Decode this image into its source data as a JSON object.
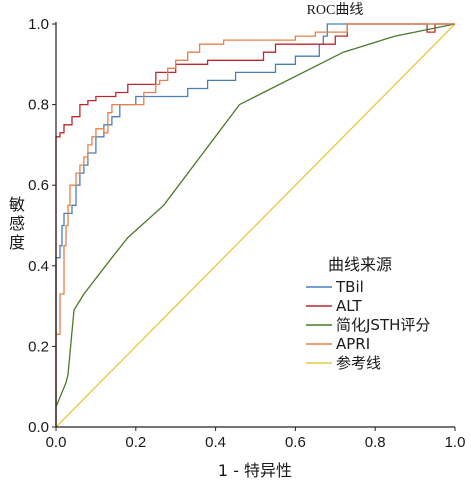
{
  "chart_data": {
    "type": "line",
    "title": "ROC曲线",
    "xlabel": "1 - 特异性",
    "ylabel": "敏感度",
    "xlim": [
      0,
      1
    ],
    "ylim": [
      0,
      1
    ],
    "x_ticks": [
      "0.0",
      "0.2",
      "0.4",
      "0.6",
      "0.8",
      "1.0"
    ],
    "y_ticks": [
      "0.0",
      "0.2",
      "0.4",
      "0.6",
      "0.8",
      "1.0"
    ],
    "grid": false,
    "legend": {
      "title": "曲线来源",
      "placement": "bottom-right"
    },
    "series": [
      {
        "name": "TBil",
        "color": "#4a7ebb",
        "points": [
          [
            0,
            0
          ],
          [
            0,
            0.42
          ],
          [
            0.01,
            0.42
          ],
          [
            0.01,
            0.45
          ],
          [
            0.015,
            0.45
          ],
          [
            0.015,
            0.5
          ],
          [
            0.02,
            0.5
          ],
          [
            0.02,
            0.53
          ],
          [
            0.04,
            0.53
          ],
          [
            0.04,
            0.55
          ],
          [
            0.05,
            0.55
          ],
          [
            0.05,
            0.6
          ],
          [
            0.06,
            0.6
          ],
          [
            0.06,
            0.63
          ],
          [
            0.07,
            0.63
          ],
          [
            0.07,
            0.65
          ],
          [
            0.08,
            0.65
          ],
          [
            0.08,
            0.68
          ],
          [
            0.1,
            0.68
          ],
          [
            0.1,
            0.72
          ],
          [
            0.12,
            0.72
          ],
          [
            0.12,
            0.75
          ],
          [
            0.14,
            0.75
          ],
          [
            0.14,
            0.77
          ],
          [
            0.16,
            0.77
          ],
          [
            0.16,
            0.8
          ],
          [
            0.2,
            0.8
          ],
          [
            0.2,
            0.82
          ],
          [
            0.33,
            0.82
          ],
          [
            0.33,
            0.84
          ],
          [
            0.38,
            0.84
          ],
          [
            0.38,
            0.86
          ],
          [
            0.45,
            0.86
          ],
          [
            0.45,
            0.88
          ],
          [
            0.55,
            0.88
          ],
          [
            0.55,
            0.9
          ],
          [
            0.6,
            0.9
          ],
          [
            0.6,
            0.92
          ],
          [
            0.66,
            0.92
          ],
          [
            0.66,
            0.95
          ],
          [
            0.67,
            0.95
          ],
          [
            0.67,
            0.97
          ],
          [
            0.68,
            0.97
          ],
          [
            0.68,
            1.0
          ],
          [
            1.0,
            1.0
          ]
        ]
      },
      {
        "name": "ALT",
        "color": "#c0262d",
        "points": [
          [
            0,
            0
          ],
          [
            0,
            0.72
          ],
          [
            0.01,
            0.72
          ],
          [
            0.01,
            0.73
          ],
          [
            0.02,
            0.73
          ],
          [
            0.02,
            0.75
          ],
          [
            0.04,
            0.75
          ],
          [
            0.04,
            0.77
          ],
          [
            0.06,
            0.77
          ],
          [
            0.06,
            0.8
          ],
          [
            0.08,
            0.8
          ],
          [
            0.08,
            0.81
          ],
          [
            0.1,
            0.81
          ],
          [
            0.1,
            0.82
          ],
          [
            0.15,
            0.82
          ],
          [
            0.15,
            0.83
          ],
          [
            0.18,
            0.83
          ],
          [
            0.18,
            0.85
          ],
          [
            0.25,
            0.85
          ],
          [
            0.25,
            0.88
          ],
          [
            0.3,
            0.88
          ],
          [
            0.3,
            0.9
          ],
          [
            0.38,
            0.9
          ],
          [
            0.38,
            0.91
          ],
          [
            0.52,
            0.91
          ],
          [
            0.52,
            0.93
          ],
          [
            0.55,
            0.93
          ],
          [
            0.55,
            0.95
          ],
          [
            0.7,
            0.95
          ],
          [
            0.7,
            0.97
          ],
          [
            0.73,
            0.97
          ],
          [
            0.73,
            1.0
          ],
          [
            0.93,
            1.0
          ],
          [
            0.93,
            0.98
          ],
          [
            0.95,
            0.98
          ],
          [
            0.95,
            1.0
          ],
          [
            1.0,
            1.0
          ]
        ]
      },
      {
        "name": "简化JSTH评分",
        "color": "#4a7a2a",
        "points": [
          [
            0,
            0.05
          ],
          [
            0.025,
            0.11
          ],
          [
            0.03,
            0.13
          ],
          [
            0.045,
            0.29
          ],
          [
            0.07,
            0.33
          ],
          [
            0.14,
            0.42
          ],
          [
            0.18,
            0.47
          ],
          [
            0.27,
            0.55
          ],
          [
            0.46,
            0.8
          ],
          [
            0.5,
            0.82
          ],
          [
            0.72,
            0.93
          ],
          [
            0.85,
            0.97
          ],
          [
            1.0,
            1.0
          ]
        ]
      },
      {
        "name": "APRI",
        "color": "#e8804a",
        "points": [
          [
            0,
            0
          ],
          [
            0,
            0.23
          ],
          [
            0.01,
            0.23
          ],
          [
            0.01,
            0.33
          ],
          [
            0.02,
            0.33
          ],
          [
            0.02,
            0.45
          ],
          [
            0.025,
            0.45
          ],
          [
            0.025,
            0.5
          ],
          [
            0.03,
            0.5
          ],
          [
            0.03,
            0.55
          ],
          [
            0.035,
            0.55
          ],
          [
            0.035,
            0.6
          ],
          [
            0.05,
            0.6
          ],
          [
            0.05,
            0.63
          ],
          [
            0.06,
            0.63
          ],
          [
            0.06,
            0.65
          ],
          [
            0.07,
            0.65
          ],
          [
            0.07,
            0.67
          ],
          [
            0.08,
            0.67
          ],
          [
            0.08,
            0.7
          ],
          [
            0.09,
            0.7
          ],
          [
            0.09,
            0.72
          ],
          [
            0.1,
            0.72
          ],
          [
            0.1,
            0.74
          ],
          [
            0.12,
            0.74
          ],
          [
            0.12,
            0.73
          ],
          [
            0.13,
            0.73
          ],
          [
            0.13,
            0.78
          ],
          [
            0.14,
            0.78
          ],
          [
            0.14,
            0.8
          ],
          [
            0.22,
            0.8
          ],
          [
            0.22,
            0.83
          ],
          [
            0.25,
            0.83
          ],
          [
            0.25,
            0.85
          ],
          [
            0.26,
            0.85
          ],
          [
            0.26,
            0.86
          ],
          [
            0.28,
            0.86
          ],
          [
            0.28,
            0.89
          ],
          [
            0.3,
            0.89
          ],
          [
            0.3,
            0.91
          ],
          [
            0.33,
            0.91
          ],
          [
            0.33,
            0.93
          ],
          [
            0.36,
            0.93
          ],
          [
            0.36,
            0.95
          ],
          [
            0.42,
            0.95
          ],
          [
            0.42,
            0.96
          ],
          [
            0.6,
            0.96
          ],
          [
            0.6,
            0.97
          ],
          [
            0.65,
            0.97
          ],
          [
            0.65,
            0.98
          ],
          [
            0.73,
            0.98
          ],
          [
            0.73,
            1.0
          ],
          [
            1.0,
            1.0
          ]
        ]
      },
      {
        "name": "参考线",
        "color": "#e8c840",
        "points": [
          [
            0,
            0
          ],
          [
            1,
            1
          ]
        ]
      }
    ]
  }
}
